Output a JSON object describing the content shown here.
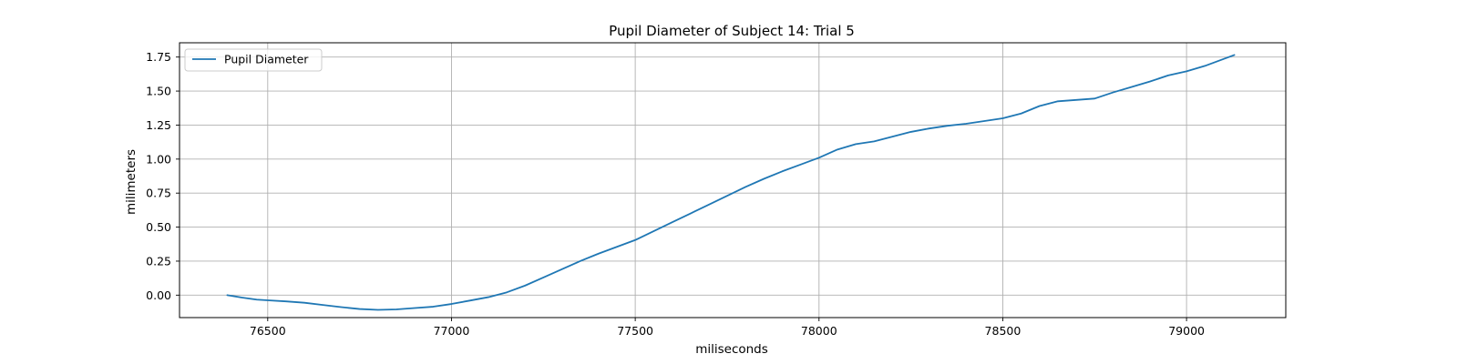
{
  "chart_data": {
    "type": "line",
    "title": "Pupil Diameter of Subject 14: Trial 5",
    "xlabel": "miliseconds",
    "ylabel": "milimeters",
    "xlim": [
      76260,
      79270
    ],
    "ylim": [
      -0.165,
      1.855
    ],
    "xticks": [
      76500,
      77000,
      77500,
      78000,
      78500,
      79000
    ],
    "xtick_labels": [
      "76500",
      "77000",
      "77500",
      "78000",
      "78500",
      "79000"
    ],
    "yticks": [
      0.0,
      0.25,
      0.5,
      0.75,
      1.0,
      1.25,
      1.5,
      1.75
    ],
    "ytick_labels": [
      "0.00",
      "0.25",
      "0.50",
      "0.75",
      "1.00",
      "1.25",
      "1.50",
      "1.75"
    ],
    "grid": true,
    "legend_position": "upper-left",
    "series": [
      {
        "name": "Pupil Diameter",
        "color": "#1f77b4",
        "x": [
          76390,
          76430,
          76470,
          76500,
          76550,
          76600,
          76650,
          76700,
          76750,
          76800,
          76850,
          76900,
          76950,
          77000,
          77050,
          77100,
          77150,
          77200,
          77250,
          77300,
          77350,
          77400,
          77450,
          77500,
          77550,
          77600,
          77650,
          77700,
          77750,
          77800,
          77850,
          77900,
          77950,
          78000,
          78050,
          78100,
          78150,
          78200,
          78250,
          78300,
          78350,
          78400,
          78450,
          78500,
          78550,
          78600,
          78650,
          78700,
          78750,
          78800,
          78850,
          78900,
          78950,
          79000,
          79050,
          79100,
          79130
        ],
        "y": [
          0.0,
          -0.018,
          -0.033,
          -0.038,
          -0.046,
          -0.056,
          -0.072,
          -0.088,
          -0.102,
          -0.108,
          -0.105,
          -0.095,
          -0.085,
          -0.065,
          -0.04,
          -0.015,
          0.02,
          0.07,
          0.13,
          0.19,
          0.25,
          0.305,
          0.355,
          0.405,
          0.47,
          0.535,
          0.6,
          0.665,
          0.73,
          0.795,
          0.855,
          0.91,
          0.96,
          1.01,
          1.07,
          1.11,
          1.13,
          1.165,
          1.2,
          1.225,
          1.245,
          1.26,
          1.28,
          1.3,
          1.335,
          1.39,
          1.425,
          1.435,
          1.445,
          1.49,
          1.53,
          1.57,
          1.615,
          1.645,
          1.685,
          1.735,
          1.765
        ]
      }
    ]
  }
}
